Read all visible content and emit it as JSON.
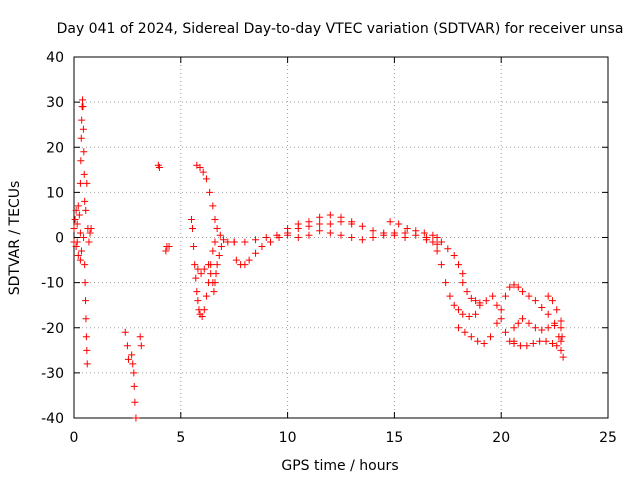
{
  "chart_data": {
    "type": "scatter",
    "title": "Day 041 of 2024, Sidereal Day-to-day VTEC variation (SDTVAR) for receiver unsa",
    "xlabel": "GPS time / hours",
    "ylabel": "SDTVAR / TECUs",
    "xlim": [
      0,
      25
    ],
    "ylim": [
      -40,
      40
    ],
    "xticks": [
      0,
      5,
      10,
      15,
      20,
      25
    ],
    "yticks": [
      -40,
      -30,
      -20,
      -10,
      0,
      10,
      20,
      30,
      40
    ],
    "xtick_labels": [
      "0",
      "5",
      "10",
      "15",
      "20",
      "25"
    ],
    "ytick_labels": [
      "-40",
      "-30",
      "-20",
      "-10",
      "0",
      "10",
      "20",
      "30",
      "40"
    ],
    "grid": true,
    "marker": "+",
    "color": "#ff0000",
    "series": [
      {
        "name": "SDTVAR",
        "points": [
          [
            0.0,
            2
          ],
          [
            0.0,
            -1
          ],
          [
            0.05,
            4
          ],
          [
            0.1,
            6
          ],
          [
            0.1,
            -2
          ],
          [
            0.15,
            3
          ],
          [
            0.2,
            7
          ],
          [
            0.2,
            -4
          ],
          [
            0.25,
            5
          ],
          [
            0.3,
            1
          ],
          [
            0.3,
            -5
          ],
          [
            0.35,
            -3
          ],
          [
            0.3,
            12
          ],
          [
            0.32,
            17
          ],
          [
            0.34,
            22
          ],
          [
            0.36,
            26
          ],
          [
            0.38,
            29
          ],
          [
            0.4,
            30.5
          ],
          [
            0.42,
            29
          ],
          [
            0.44,
            24
          ],
          [
            0.46,
            19
          ],
          [
            0.48,
            14
          ],
          [
            0.5,
            8
          ],
          [
            0.5,
            -6
          ],
          [
            0.52,
            -10
          ],
          [
            0.54,
            -14
          ],
          [
            0.56,
            -18
          ],
          [
            0.58,
            -22
          ],
          [
            0.6,
            -25
          ],
          [
            0.62,
            -28
          ],
          [
            0.55,
            6
          ],
          [
            0.6,
            12
          ],
          [
            0.65,
            2
          ],
          [
            0.7,
            -1
          ],
          [
            0.75,
            1
          ],
          [
            0.8,
            2
          ],
          [
            0.45,
            0
          ],
          [
            0.15,
            -1
          ],
          [
            2.4,
            -21
          ],
          [
            2.5,
            -24
          ],
          [
            2.55,
            -27
          ],
          [
            2.7,
            -26
          ],
          [
            2.75,
            -28
          ],
          [
            2.8,
            -30
          ],
          [
            2.82,
            -33
          ],
          [
            2.85,
            -36.5
          ],
          [
            2.9,
            -40
          ],
          [
            3.1,
            -22
          ],
          [
            3.15,
            -24
          ],
          [
            3.95,
            16
          ],
          [
            4.0,
            15.5
          ],
          [
            4.3,
            -3
          ],
          [
            4.35,
            -2
          ],
          [
            4.45,
            -2
          ],
          [
            5.6,
            -2
          ],
          [
            5.65,
            -6
          ],
          [
            5.7,
            -9
          ],
          [
            5.75,
            -12
          ],
          [
            5.8,
            -14
          ],
          [
            5.85,
            -16
          ],
          [
            5.9,
            -17
          ],
          [
            6.0,
            -17.5
          ],
          [
            6.1,
            -16
          ],
          [
            6.2,
            -13
          ],
          [
            6.3,
            -10
          ],
          [
            6.4,
            -6
          ],
          [
            6.5,
            -3
          ],
          [
            6.6,
            -1
          ],
          [
            5.75,
            16
          ],
          [
            5.9,
            15.5
          ],
          [
            6.05,
            14.5
          ],
          [
            6.2,
            13
          ],
          [
            6.35,
            10
          ],
          [
            6.5,
            7
          ],
          [
            6.6,
            4
          ],
          [
            6.7,
            2
          ],
          [
            6.85,
            0.5
          ],
          [
            7.0,
            -0.5
          ],
          [
            7.2,
            -1
          ],
          [
            7.5,
            -1
          ],
          [
            5.5,
            4
          ],
          [
            5.55,
            2
          ],
          [
            5.8,
            -7
          ],
          [
            5.95,
            -8
          ],
          [
            6.1,
            -7
          ],
          [
            6.3,
            -6
          ],
          [
            6.4,
            -8
          ],
          [
            6.5,
            -10
          ],
          [
            6.55,
            -12
          ],
          [
            6.6,
            -10
          ],
          [
            6.65,
            -8
          ],
          [
            6.7,
            -6
          ],
          [
            6.8,
            -4
          ],
          [
            6.9,
            -2
          ],
          [
            7.6,
            -5
          ],
          [
            7.8,
            -6
          ],
          [
            8.0,
            -6
          ],
          [
            8.2,
            -5
          ],
          [
            8.5,
            -3.5
          ],
          [
            8.8,
            -2
          ],
          [
            9.2,
            -1
          ],
          [
            9.6,
            0
          ],
          [
            10.0,
            1
          ],
          [
            10.5,
            2
          ],
          [
            11.0,
            2.5
          ],
          [
            11.5,
            3
          ],
          [
            7.5,
            -1
          ],
          [
            8.0,
            -1
          ],
          [
            8.5,
            -0.5
          ],
          [
            9.0,
            0
          ],
          [
            9.5,
            0.5
          ],
          [
            10.0,
            0.5
          ],
          [
            10.5,
            0
          ],
          [
            11.0,
            0.5
          ],
          [
            11.5,
            1.5
          ],
          [
            12.0,
            3
          ],
          [
            12.5,
            3.5
          ],
          [
            13.0,
            3
          ],
          [
            10.0,
            2
          ],
          [
            10.5,
            3
          ],
          [
            11.0,
            3.5
          ],
          [
            11.5,
            4.5
          ],
          [
            12.0,
            5
          ],
          [
            12.5,
            4.5
          ],
          [
            13.0,
            3.5
          ],
          [
            13.5,
            2.5
          ],
          [
            14.0,
            1.5
          ],
          [
            14.5,
            1
          ],
          [
            15.0,
            0.5
          ],
          [
            15.5,
            0
          ],
          [
            12.0,
            1
          ],
          [
            12.5,
            0.5
          ],
          [
            13.0,
            0
          ],
          [
            13.5,
            -0.5
          ],
          [
            14.0,
            0
          ],
          [
            14.5,
            0.5
          ],
          [
            15.0,
            1
          ],
          [
            15.5,
            1
          ],
          [
            16.0,
            0.5
          ],
          [
            16.5,
            -0.5
          ],
          [
            17.0,
            -1.5
          ],
          [
            14.8,
            3.5
          ],
          [
            15.2,
            3
          ],
          [
            15.6,
            2
          ],
          [
            16.0,
            1.5
          ],
          [
            16.4,
            1
          ],
          [
            16.8,
            0.5
          ],
          [
            17.0,
            0
          ],
          [
            17.2,
            -1
          ],
          [
            17.5,
            -2.5
          ],
          [
            17.8,
            -4
          ],
          [
            18.0,
            -6
          ],
          [
            18.2,
            -8
          ],
          [
            16.5,
            0
          ],
          [
            16.8,
            -1
          ],
          [
            17.0,
            -3
          ],
          [
            17.2,
            -6
          ],
          [
            17.4,
            -10
          ],
          [
            17.6,
            -13
          ],
          [
            17.8,
            -15
          ],
          [
            18.0,
            -16
          ],
          [
            18.2,
            -17
          ],
          [
            18.5,
            -17.5
          ],
          [
            18.8,
            -17
          ],
          [
            19.0,
            -15
          ],
          [
            18.2,
            -10
          ],
          [
            18.4,
            -12
          ],
          [
            18.6,
            -13.5
          ],
          [
            18.8,
            -14
          ],
          [
            19.0,
            -14.5
          ],
          [
            19.3,
            -14
          ],
          [
            19.6,
            -13
          ],
          [
            19.8,
            -15
          ],
          [
            20.0,
            -18
          ],
          [
            20.2,
            -21
          ],
          [
            20.4,
            -23
          ],
          [
            20.6,
            -23.5
          ],
          [
            18.0,
            -20
          ],
          [
            18.3,
            -21
          ],
          [
            18.6,
            -22
          ],
          [
            18.9,
            -23
          ],
          [
            19.2,
            -23.5
          ],
          [
            19.5,
            -22
          ],
          [
            19.8,
            -19
          ],
          [
            20.0,
            -16
          ],
          [
            20.2,
            -13
          ],
          [
            20.4,
            -11
          ],
          [
            20.6,
            -10.5
          ],
          [
            20.8,
            -11
          ],
          [
            21.0,
            -12
          ],
          [
            21.3,
            -13
          ],
          [
            21.6,
            -14
          ],
          [
            21.9,
            -15.5
          ],
          [
            22.2,
            -17
          ],
          [
            22.5,
            -19
          ],
          [
            22.7,
            -22
          ],
          [
            22.8,
            -25
          ],
          [
            22.9,
            -26.5
          ],
          [
            20.6,
            -23
          ],
          [
            20.9,
            -24
          ],
          [
            21.2,
            -24
          ],
          [
            21.5,
            -23.5
          ],
          [
            21.8,
            -23
          ],
          [
            22.1,
            -23
          ],
          [
            22.4,
            -23.5
          ],
          [
            22.6,
            -24
          ],
          [
            22.8,
            -23
          ],
          [
            20.6,
            -20
          ],
          [
            20.8,
            -19
          ],
          [
            21.0,
            -18
          ],
          [
            21.3,
            -19
          ],
          [
            21.6,
            -20
          ],
          [
            21.9,
            -20.5
          ],
          [
            22.2,
            -20
          ],
          [
            22.5,
            -19.5
          ],
          [
            22.8,
            -18.5
          ],
          [
            22.2,
            -13
          ],
          [
            22.4,
            -14
          ],
          [
            22.6,
            -16
          ],
          [
            22.8,
            -20
          ],
          [
            22.85,
            -22
          ]
        ]
      }
    ]
  }
}
